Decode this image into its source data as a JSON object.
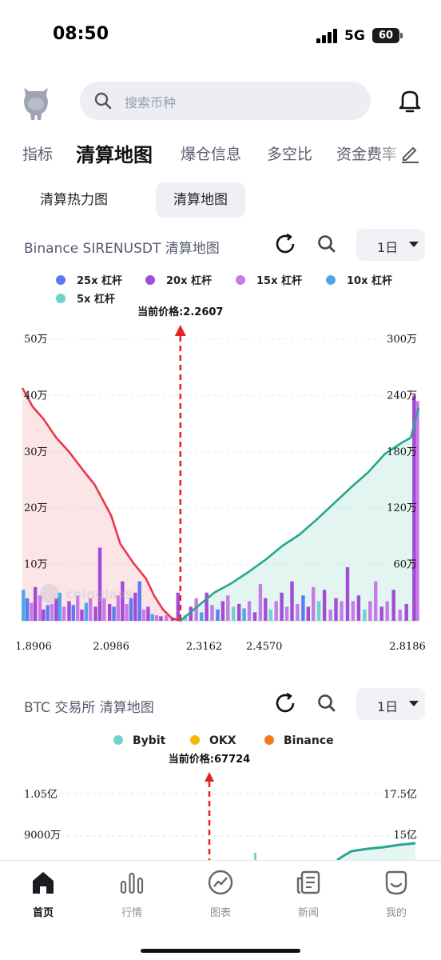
{
  "status_bar": {
    "time": "08:50",
    "network": "5G",
    "battery": "60"
  },
  "header": {
    "search_placeholder": "搜索币种"
  },
  "tabs": [
    {
      "label": "指标",
      "active": false
    },
    {
      "label": "清算地图",
      "active": true
    },
    {
      "label": "爆仓信息",
      "active": false
    },
    {
      "label": "多空比",
      "active": false
    },
    {
      "label": "资金费率",
      "active": false
    }
  ],
  "subtabs": [
    {
      "label": "清算热力图",
      "active": false
    },
    {
      "label": "清算地图",
      "active": true
    }
  ],
  "chart1_header": {
    "title": "Binance SIRENUSDT 清算地图",
    "timeframe": "1日"
  },
  "chart2_header": {
    "title": "BTC 交易所  清算地图",
    "timeframe": "1日"
  },
  "watermark": "coinglass",
  "chart_data": [
    {
      "type": "bar",
      "legend": [
        {
          "name": "25x 杠杆",
          "color": "#5b7cf0"
        },
        {
          "name": "20x 杠杆",
          "color": "#a14bd6"
        },
        {
          "name": "15x 杠杆",
          "color": "#c77be8"
        },
        {
          "name": "10x 杠杆",
          "color": "#4ea6ea"
        },
        {
          "name": "5x 杠杆",
          "color": "#6dd3cc"
        }
      ],
      "current_price_label": "当前价格:2.2607",
      "current_price": 2.2607,
      "x_ticks": [
        "1.8906",
        "2.0986",
        "2.3162",
        "2.4570",
        "2.8186"
      ],
      "x_range": [
        1.8906,
        2.8186
      ],
      "y_left_ticks": [
        "10万",
        "20万",
        "30万",
        "40万",
        "50万"
      ],
      "y_left_range": [
        0,
        500000
      ],
      "y_right_ticks": [
        "60万",
        "120万",
        "180万",
        "240万",
        "300万"
      ],
      "y_right_range": [
        0,
        3000000
      ],
      "short_cumulative_color": "#e8374a",
      "long_cumulative_color": "#26a78e",
      "short_cumulative": [
        [
          1.8906,
          2480000
        ],
        [
          1.915,
          2280000
        ],
        [
          1.94,
          2150000
        ],
        [
          1.97,
          1950000
        ],
        [
          2.0,
          1800000
        ],
        [
          2.03,
          1620000
        ],
        [
          2.06,
          1450000
        ],
        [
          2.0986,
          1120000
        ],
        [
          2.12,
          820000
        ],
        [
          2.15,
          620000
        ],
        [
          2.18,
          450000
        ],
        [
          2.2,
          260000
        ],
        [
          2.22,
          120000
        ],
        [
          2.24,
          30000
        ],
        [
          2.2607,
          0
        ]
      ],
      "long_cumulative": [
        [
          2.2607,
          0
        ],
        [
          2.3,
          150000
        ],
        [
          2.34,
          300000
        ],
        [
          2.38,
          400000
        ],
        [
          2.42,
          520000
        ],
        [
          2.46,
          650000
        ],
        [
          2.5,
          800000
        ],
        [
          2.54,
          920000
        ],
        [
          2.58,
          1080000
        ],
        [
          2.62,
          1250000
        ],
        [
          2.66,
          1420000
        ],
        [
          2.7,
          1580000
        ],
        [
          2.74,
          1780000
        ],
        [
          2.78,
          1900000
        ],
        [
          2.8,
          1950000
        ],
        [
          2.8186,
          2270000
        ]
      ],
      "bars": [
        [
          1.893,
          55000,
          3
        ],
        [
          1.902,
          40000,
          0
        ],
        [
          1.912,
          32000,
          2
        ],
        [
          1.921,
          60000,
          1
        ],
        [
          1.932,
          45000,
          2
        ],
        [
          1.94,
          20000,
          1
        ],
        [
          1.95,
          28000,
          0
        ],
        [
          1.96,
          30000,
          2
        ],
        [
          1.97,
          40000,
          1
        ],
        [
          1.978,
          50000,
          3
        ],
        [
          1.988,
          25000,
          2
        ],
        [
          2.0,
          35000,
          1
        ],
        [
          2.01,
          28000,
          0
        ],
        [
          2.02,
          45000,
          2
        ],
        [
          2.03,
          20000,
          1
        ],
        [
          2.04,
          32000,
          3
        ],
        [
          2.05,
          40000,
          2
        ],
        [
          2.062,
          25000,
          1
        ],
        [
          2.072,
          130000,
          1
        ],
        [
          2.082,
          40000,
          2
        ],
        [
          2.095,
          30000,
          1
        ],
        [
          2.105,
          25000,
          0
        ],
        [
          2.115,
          45000,
          2
        ],
        [
          2.125,
          70000,
          1
        ],
        [
          2.135,
          30000,
          2
        ],
        [
          2.145,
          40000,
          0
        ],
        [
          2.155,
          50000,
          1
        ],
        [
          2.165,
          70000,
          0
        ],
        [
          2.175,
          20000,
          2
        ],
        [
          2.185,
          25000,
          1
        ],
        [
          2.195,
          12000,
          3
        ],
        [
          2.205,
          10000,
          2
        ],
        [
          2.215,
          8000,
          1
        ],
        [
          2.228,
          10000,
          2
        ],
        [
          2.242,
          6000,
          1
        ],
        [
          2.255,
          50000,
          1
        ],
        [
          2.272,
          10000,
          4
        ],
        [
          2.285,
          25000,
          1
        ],
        [
          2.298,
          40000,
          2
        ],
        [
          2.31,
          15000,
          3
        ],
        [
          2.322,
          50000,
          1
        ],
        [
          2.335,
          28000,
          2
        ],
        [
          2.348,
          20000,
          0
        ],
        [
          2.36,
          35000,
          1
        ],
        [
          2.372,
          45000,
          2
        ],
        [
          2.385,
          25000,
          4
        ],
        [
          2.398,
          30000,
          1
        ],
        [
          2.41,
          22000,
          3
        ],
        [
          2.422,
          35000,
          2
        ],
        [
          2.435,
          15000,
          1
        ],
        [
          2.448,
          65000,
          2
        ],
        [
          2.46,
          40000,
          1
        ],
        [
          2.472,
          20000,
          4
        ],
        [
          2.485,
          35000,
          2
        ],
        [
          2.498,
          50000,
          1
        ],
        [
          2.51,
          25000,
          2
        ],
        [
          2.522,
          70000,
          1
        ],
        [
          2.535,
          30000,
          2
        ],
        [
          2.548,
          45000,
          0
        ],
        [
          2.56,
          25000,
          1
        ],
        [
          2.572,
          60000,
          2
        ],
        [
          2.585,
          35000,
          4
        ],
        [
          2.598,
          55000,
          1
        ],
        [
          2.612,
          20000,
          2
        ],
        [
          2.625,
          40000,
          1
        ],
        [
          2.638,
          35000,
          2
        ],
        [
          2.652,
          95000,
          1
        ],
        [
          2.665,
          35000,
          2
        ],
        [
          2.678,
          45000,
          1
        ],
        [
          2.692,
          20000,
          4
        ],
        [
          2.705,
          35000,
          2
        ],
        [
          2.718,
          70000,
          2
        ],
        [
          2.732,
          25000,
          1
        ],
        [
          2.745,
          35000,
          2
        ],
        [
          2.76,
          55000,
          1
        ],
        [
          2.775,
          20000,
          2
        ],
        [
          2.79,
          30000,
          1
        ],
        [
          2.808,
          400000,
          1
        ],
        [
          2.816,
          390000,
          2
        ]
      ]
    },
    {
      "type": "area",
      "legend": [
        {
          "name": "Bybit",
          "color": "#6dd3cc"
        },
        {
          "name": "OKX",
          "color": "#f5b700"
        },
        {
          "name": "Binance",
          "color": "#f47a1f"
        }
      ],
      "current_price_label": "当前价格:67724",
      "y_left_ticks": [
        "9000万",
        "1.05亿"
      ],
      "y_right_ticks": [
        "15亿",
        "17.5亿"
      ]
    }
  ],
  "bottom_nav": [
    {
      "label": "首页",
      "icon": "home-icon",
      "active": true
    },
    {
      "label": "行情",
      "icon": "market-icon",
      "active": false
    },
    {
      "label": "图表",
      "icon": "chart-icon",
      "active": false
    },
    {
      "label": "新闻",
      "icon": "news-icon",
      "active": false
    },
    {
      "label": "我的",
      "icon": "profile-icon",
      "active": false
    }
  ]
}
